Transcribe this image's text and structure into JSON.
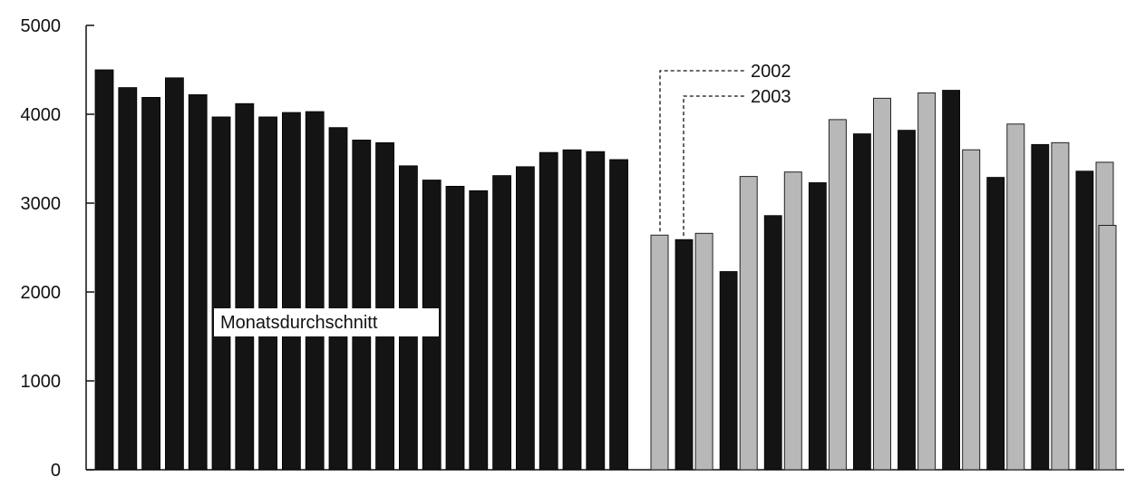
{
  "chart_data": {
    "type": "bar",
    "title": "",
    "xlabel": "",
    "ylabel": "",
    "ylim": [
      0,
      5000
    ],
    "yticks": [
      0,
      1000,
      2000,
      3000,
      4000,
      5000
    ],
    "grid": false,
    "colors": {
      "dark": "#141414",
      "light": "#b8b8b8",
      "axis": "#111111"
    },
    "group_label": "Monatsdurchschnitt",
    "monthly_average": [
      4500,
      4300,
      4190,
      4410,
      4220,
      3970,
      4120,
      3970,
      4020,
      4030,
      3850,
      3710,
      3680,
      3420,
      3260,
      3190,
      3140,
      3310,
      3410,
      3570,
      3600,
      3580,
      3490
    ],
    "series": [
      {
        "name": "2002",
        "values": [
          2640,
          2660,
          3300,
          3350,
          3940,
          4180,
          4240,
          3600,
          3890,
          3680,
          3460,
          2750
        ]
      },
      {
        "name": "2003",
        "values": [
          2590,
          2230,
          2860,
          3230,
          3780,
          3820,
          4270,
          3290,
          3660,
          3360
        ]
      }
    ]
  }
}
